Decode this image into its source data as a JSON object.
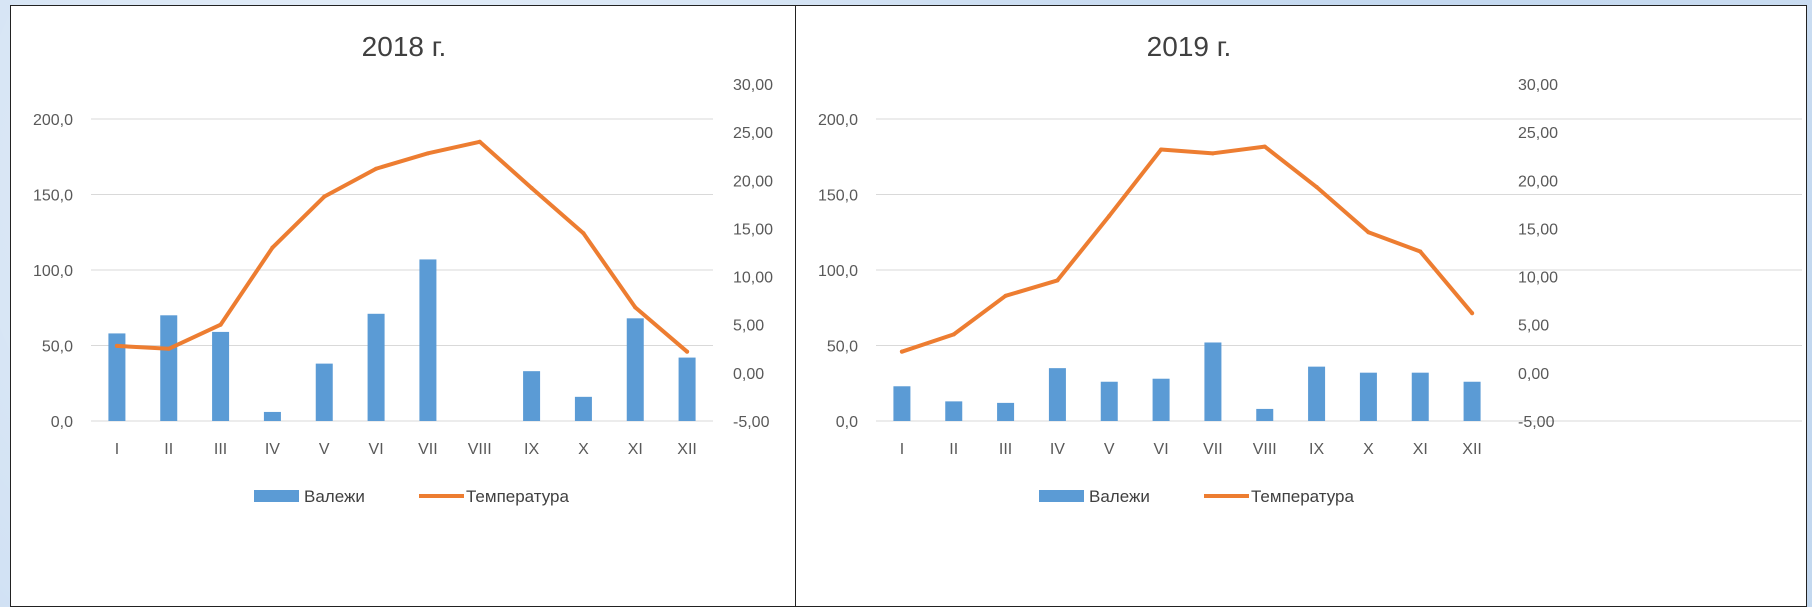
{
  "colors": {
    "bars": "#5b9bd5",
    "line": "#ed7d31",
    "grid": "#d9d9d9",
    "text": "#595959"
  },
  "chart_data": [
    {
      "type": "bar",
      "title": "2018 г.",
      "categories": [
        "I",
        "II",
        "III",
        "IV",
        "V",
        "VI",
        "VII",
        "VIII",
        "IX",
        "X",
        "XI",
        "XII"
      ],
      "y_left": {
        "ticks": [
          "0,0",
          "50,0",
          "100,0",
          "150,0",
          "200,0"
        ],
        "ylim": [
          0,
          200
        ]
      },
      "y_right": {
        "ticks": [
          "-5,00",
          "0,00",
          "5,00",
          "10,00",
          "15,00",
          "20,00",
          "25,00",
          "30,00"
        ],
        "ylim": [
          -5,
          30
        ]
      },
      "grid": true,
      "legend_position": "bottom",
      "legend": [
        "Валежи",
        "Температура"
      ],
      "series": [
        {
          "name": "Валежи",
          "type": "bar",
          "axis": "left",
          "values": [
            58,
            70,
            59,
            6,
            38,
            71,
            107,
            0,
            33,
            16,
            68,
            42
          ]
        },
        {
          "name": "Температура",
          "type": "line",
          "axis": "right",
          "values": [
            2.8,
            2.5,
            5.0,
            13.0,
            18.3,
            21.2,
            22.8,
            24.0,
            19.2,
            14.5,
            6.8,
            2.2
          ]
        }
      ]
    },
    {
      "type": "bar",
      "title": "2019 г.",
      "categories": [
        "I",
        "II",
        "III",
        "IV",
        "V",
        "VI",
        "VII",
        "VIII",
        "IX",
        "X",
        "XI",
        "XII"
      ],
      "y_left": {
        "ticks": [
          "0,0",
          "50,0",
          "100,0",
          "150,0",
          "200,0"
        ],
        "ylim": [
          0,
          200
        ]
      },
      "y_right": {
        "ticks": [
          "-5,00",
          "0,00",
          "5,00",
          "10,00",
          "15,00",
          "20,00",
          "25,00",
          "30,00"
        ],
        "ylim": [
          -5,
          30
        ]
      },
      "grid": true,
      "legend_position": "bottom",
      "legend": [
        "Валежи",
        "Температура"
      ],
      "series": [
        {
          "name": "Валежи",
          "type": "bar",
          "axis": "left",
          "values": [
            23,
            13,
            12,
            35,
            26,
            28,
            52,
            8,
            36,
            32,
            32,
            26
          ]
        },
        {
          "name": "Температура",
          "type": "line",
          "axis": "right",
          "values": [
            2.2,
            4.0,
            8.0,
            9.6,
            16.3,
            23.2,
            22.8,
            23.5,
            19.3,
            14.6,
            12.6,
            6.2
          ]
        }
      ]
    }
  ]
}
